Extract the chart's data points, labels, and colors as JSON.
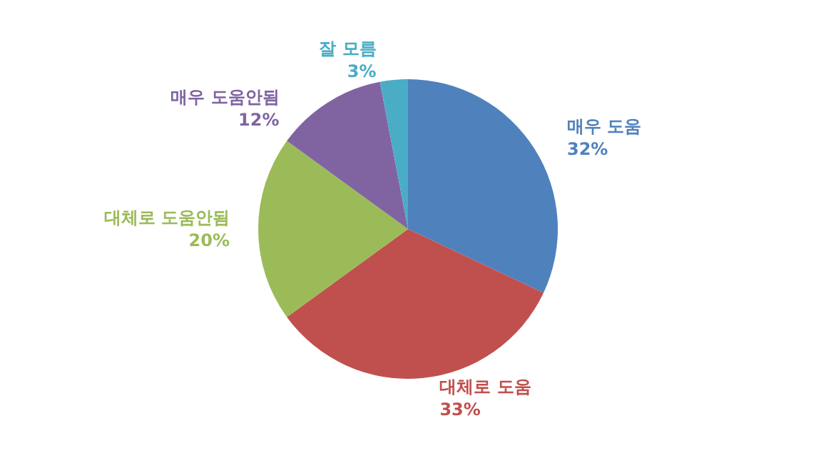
{
  "chart_data": {
    "type": "pie",
    "categories": [
      "매우 도움",
      "대체로 도움",
      "대체로 도움안됨",
      "매우 도움안됨",
      "잘 모름"
    ],
    "values": [
      32,
      33,
      20,
      12,
      3
    ],
    "colors": [
      "#4f81bd",
      "#c0504d",
      "#9bbb59",
      "#8064a2",
      "#4bacc6"
    ],
    "value_labels": [
      "32%",
      "33%",
      "20%",
      "12%",
      "3%"
    ],
    "legend": false
  }
}
